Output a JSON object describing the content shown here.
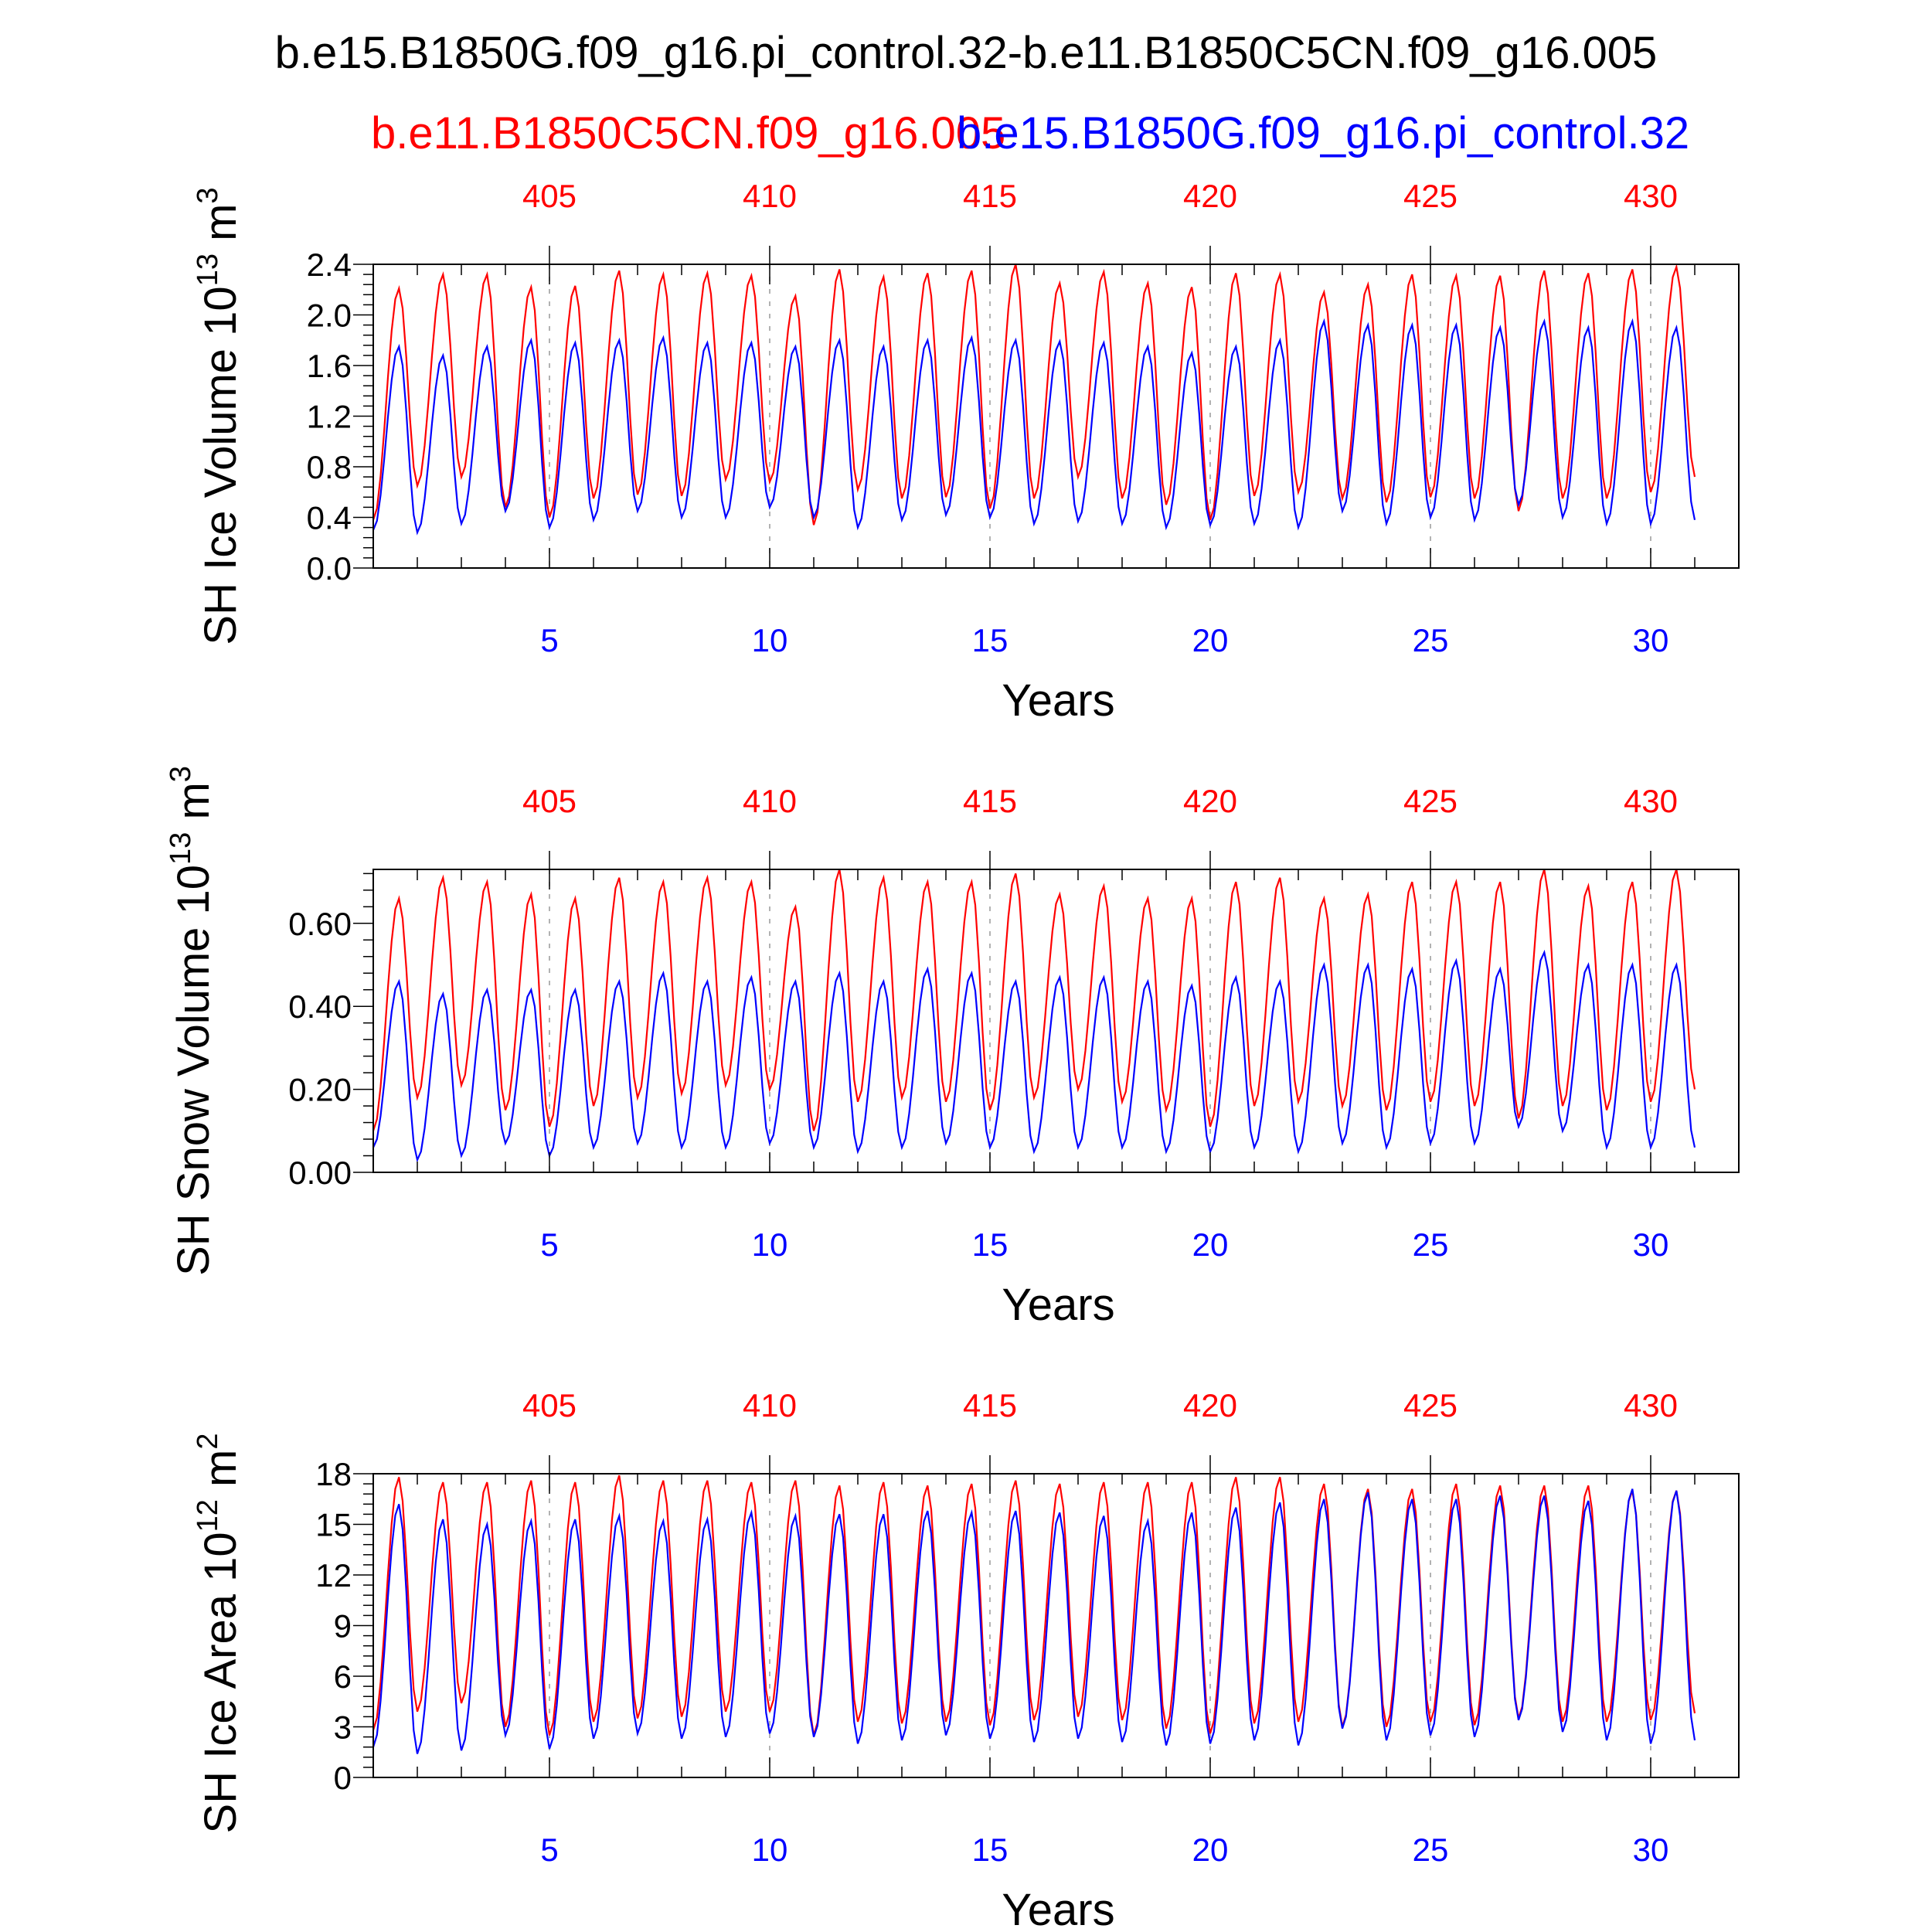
{
  "title": "b.e15.B1850G.f09_g16.pi_control.32-b.e11.B1850C5CN.f09_g16.005",
  "legend": {
    "red_label": "b.e11.B1850C5CN.f09_g16.005",
    "blue_label": "b.e15.B1850G.f09_g16.pi_control.32"
  },
  "colors": {
    "red": "#ff0000",
    "blue": "#0000ff",
    "axis": "#000000",
    "grid": "#999999"
  },
  "chart_data": [
    {
      "type": "line",
      "ylabel": "SH Ice Volume 10",
      "ylabel_exp": "13",
      "ylabel_unit": "m",
      "ylabel_unit_exp": "3",
      "xlabel": "Years",
      "xlim": [
        1,
        32
      ],
      "ylim": [
        0,
        2.4
      ],
      "yticks": [
        "0.0",
        "0.4",
        "0.8",
        "1.2",
        "1.6",
        "2.0",
        "2.4"
      ],
      "ytick_values": [
        0,
        0.4,
        0.8,
        1.2,
        1.6,
        2.0,
        2.4
      ],
      "xticks_bottom": [
        "5",
        "10",
        "15",
        "20",
        "25",
        "30"
      ],
      "xticks_top": [
        "405",
        "410",
        "415",
        "420",
        "425",
        "430"
      ],
      "series": [
        {
          "name": "b.e11.B1850C5CN.f09_g16.005",
          "color": "red",
          "max": [
            2.21,
            2.32,
            2.32,
            2.22,
            2.23,
            2.35,
            2.32,
            2.33,
            2.31,
            2.15,
            2.36,
            2.3,
            2.33,
            2.35,
            2.4,
            2.25,
            2.34,
            2.25,
            2.22,
            2.33,
            2.32,
            2.18,
            2.24,
            2.32,
            2.31,
            2.31,
            2.35,
            2.33,
            2.36,
            2.38
          ],
          "min": [
            0.38,
            0.65,
            0.72,
            0.48,
            0.4,
            0.55,
            0.58,
            0.57,
            0.7,
            0.68,
            0.34,
            0.62,
            0.55,
            0.56,
            0.47,
            0.55,
            0.72,
            0.55,
            0.5,
            0.38,
            0.57,
            0.6,
            0.55,
            0.52,
            0.56,
            0.55,
            0.45,
            0.55,
            0.55,
            0.6,
            0.72
          ]
        },
        {
          "name": "b.e15.B1850G.f09_g16.pi_control.32",
          "color": "blue",
          "max": [
            1.75,
            1.68,
            1.75,
            1.8,
            1.78,
            1.8,
            1.82,
            1.78,
            1.78,
            1.75,
            1.8,
            1.75,
            1.8,
            1.82,
            1.8,
            1.79,
            1.78,
            1.75,
            1.7,
            1.75,
            1.8,
            1.95,
            1.92,
            1.92,
            1.92,
            1.9,
            1.95,
            1.9,
            1.95,
            1.9
          ],
          "min": [
            0.3,
            0.28,
            0.35,
            0.45,
            0.32,
            0.38,
            0.45,
            0.4,
            0.4,
            0.48,
            0.4,
            0.32,
            0.38,
            0.42,
            0.4,
            0.35,
            0.37,
            0.35,
            0.32,
            0.34,
            0.35,
            0.32,
            0.45,
            0.35,
            0.4,
            0.38,
            0.5,
            0.4,
            0.35,
            0.35,
            0.38
          ]
        }
      ]
    },
    {
      "type": "line",
      "ylabel": "SH Snow Volume 10",
      "ylabel_exp": "13",
      "ylabel_unit": "m",
      "ylabel_unit_exp": "3",
      "xlabel": "Years",
      "xlim": [
        1,
        32
      ],
      "ylim": [
        0,
        0.73
      ],
      "yticks": [
        "0.00",
        "0.20",
        "0.40",
        "0.60"
      ],
      "ytick_values": [
        0,
        0.2,
        0.4,
        0.6
      ],
      "xticks_bottom": [
        "5",
        "10",
        "15",
        "20",
        "25",
        "30"
      ],
      "xticks_top": [
        "405",
        "410",
        "415",
        "420",
        "425",
        "430"
      ],
      "series": [
        {
          "name": "b.e11.B1850C5CN.f09_g16.005",
          "color": "red",
          "max": [
            0.66,
            0.71,
            0.7,
            0.67,
            0.66,
            0.71,
            0.7,
            0.71,
            0.7,
            0.64,
            0.73,
            0.71,
            0.7,
            0.7,
            0.72,
            0.67,
            0.69,
            0.66,
            0.66,
            0.7,
            0.71,
            0.66,
            0.67,
            0.7,
            0.7,
            0.7,
            0.73,
            0.69,
            0.7,
            0.73
          ],
          "min": [
            0.1,
            0.18,
            0.21,
            0.15,
            0.11,
            0.16,
            0.18,
            0.19,
            0.21,
            0.2,
            0.1,
            0.17,
            0.18,
            0.17,
            0.15,
            0.18,
            0.2,
            0.17,
            0.15,
            0.11,
            0.16,
            0.17,
            0.16,
            0.15,
            0.17,
            0.16,
            0.13,
            0.16,
            0.15,
            0.17,
            0.2
          ]
        },
        {
          "name": "b.e15.B1850G.f09_g16.pi_control.32",
          "color": "blue",
          "max": [
            0.46,
            0.43,
            0.44,
            0.44,
            0.44,
            0.46,
            0.48,
            0.46,
            0.47,
            0.46,
            0.48,
            0.46,
            0.49,
            0.48,
            0.46,
            0.47,
            0.47,
            0.46,
            0.45,
            0.47,
            0.46,
            0.5,
            0.5,
            0.49,
            0.51,
            0.49,
            0.53,
            0.5,
            0.5,
            0.5
          ],
          "min": [
            0.06,
            0.03,
            0.04,
            0.07,
            0.04,
            0.06,
            0.07,
            0.06,
            0.06,
            0.07,
            0.06,
            0.05,
            0.06,
            0.07,
            0.06,
            0.05,
            0.06,
            0.06,
            0.05,
            0.05,
            0.06,
            0.05,
            0.07,
            0.06,
            0.07,
            0.07,
            0.11,
            0.1,
            0.06,
            0.06,
            0.06
          ]
        }
      ]
    },
    {
      "type": "line",
      "ylabel": "SH Ice Area 10",
      "ylabel_exp": "12",
      "ylabel_unit": "m",
      "ylabel_unit_exp": "2",
      "xlabel": "Years",
      "xlim": [
        1,
        32
      ],
      "ylim": [
        0,
        18
      ],
      "yticks": [
        "0",
        "3",
        "6",
        "9",
        "12",
        "15",
        "18"
      ],
      "ytick_values": [
        0,
        3,
        6,
        9,
        12,
        15,
        18
      ],
      "xticks_bottom": [
        "5",
        "10",
        "15",
        "20",
        "25",
        "30"
      ],
      "xticks_top": [
        "405",
        "410",
        "415",
        "420",
        "425",
        "430"
      ],
      "series": [
        {
          "name": "b.e11.B1850C5CN.f09_g16.005",
          "color": "red",
          "max": [
            17.8,
            17.5,
            17.5,
            17.6,
            17.5,
            17.9,
            17.6,
            17.6,
            17.5,
            17.6,
            17.3,
            17.5,
            17.3,
            17.4,
            17.6,
            17.4,
            17.5,
            17.5,
            17.5,
            17.8,
            17.8,
            17.4,
            17.1,
            17.1,
            17.4,
            17.3,
            17.3,
            17.3,
            17.0,
            17.0
          ],
          "min": [
            2.8,
            3.9,
            4.4,
            3.0,
            2.5,
            3.3,
            3.5,
            3.6,
            3.9,
            3.9,
            2.5,
            3.3,
            3.2,
            3.3,
            3.1,
            3.4,
            3.6,
            3.4,
            2.9,
            2.6,
            3.2,
            3.3,
            3.0,
            3.0,
            3.3,
            3.1,
            3.5,
            3.3,
            3.3,
            3.4,
            3.8
          ]
        },
        {
          "name": "b.e15.B1850G.f09_g16.pi_control.32",
          "color": "blue",
          "max": [
            16.2,
            15.3,
            15.0,
            15.2,
            15.3,
            15.5,
            15.2,
            15.3,
            15.7,
            15.5,
            15.6,
            15.6,
            15.8,
            15.7,
            15.8,
            15.7,
            15.5,
            15.2,
            15.7,
            16.0,
            16.3,
            16.5,
            16.9,
            16.5,
            16.5,
            16.7,
            16.7,
            16.4,
            17.1,
            17.0
          ],
          "min": [
            1.8,
            1.4,
            1.6,
            2.5,
            1.7,
            2.3,
            2.6,
            2.3,
            2.4,
            2.6,
            2.4,
            2.0,
            2.2,
            2.5,
            2.3,
            2.1,
            2.3,
            2.1,
            1.9,
            2.0,
            2.2,
            1.9,
            2.9,
            2.2,
            2.5,
            2.4,
            3.4,
            2.7,
            2.2,
            2.0,
            2.2
          ]
        }
      ]
    }
  ]
}
